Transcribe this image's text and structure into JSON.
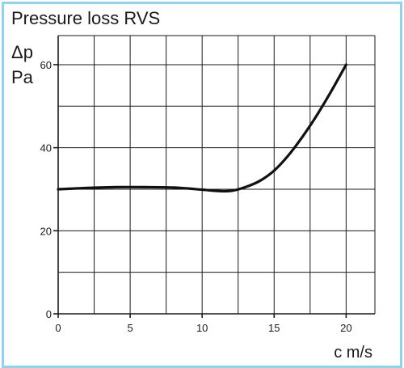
{
  "chart_data": {
    "type": "line",
    "title": "Pressure loss RVS",
    "ylabel_symbol": "Δp",
    "ylabel_unit": "Pa",
    "xlabel": "c m/s",
    "xlim": [
      0,
      22
    ],
    "ylim": [
      0,
      67
    ],
    "x_ticks": [
      0,
      5,
      10,
      15,
      20
    ],
    "y_ticks": [
      0,
      20,
      40,
      60
    ],
    "x_grid": [
      0,
      2.5,
      5,
      7.5,
      10,
      12.5,
      15,
      17.5,
      20,
      22
    ],
    "y_grid": [
      0,
      10,
      20,
      30,
      40,
      50,
      60,
      67
    ],
    "grid": true,
    "series": [
      {
        "x": [
          0,
          2,
          4,
          6,
          8,
          10,
          11,
          12,
          13,
          14,
          15,
          16,
          17,
          18,
          19,
          20
        ],
        "y": [
          30,
          30.3,
          30.5,
          30.5,
          30.4,
          29.9,
          29.6,
          29.6,
          30.5,
          32.0,
          34.5,
          38.2,
          42.8,
          48.0,
          53.8,
          60
        ]
      }
    ]
  }
}
